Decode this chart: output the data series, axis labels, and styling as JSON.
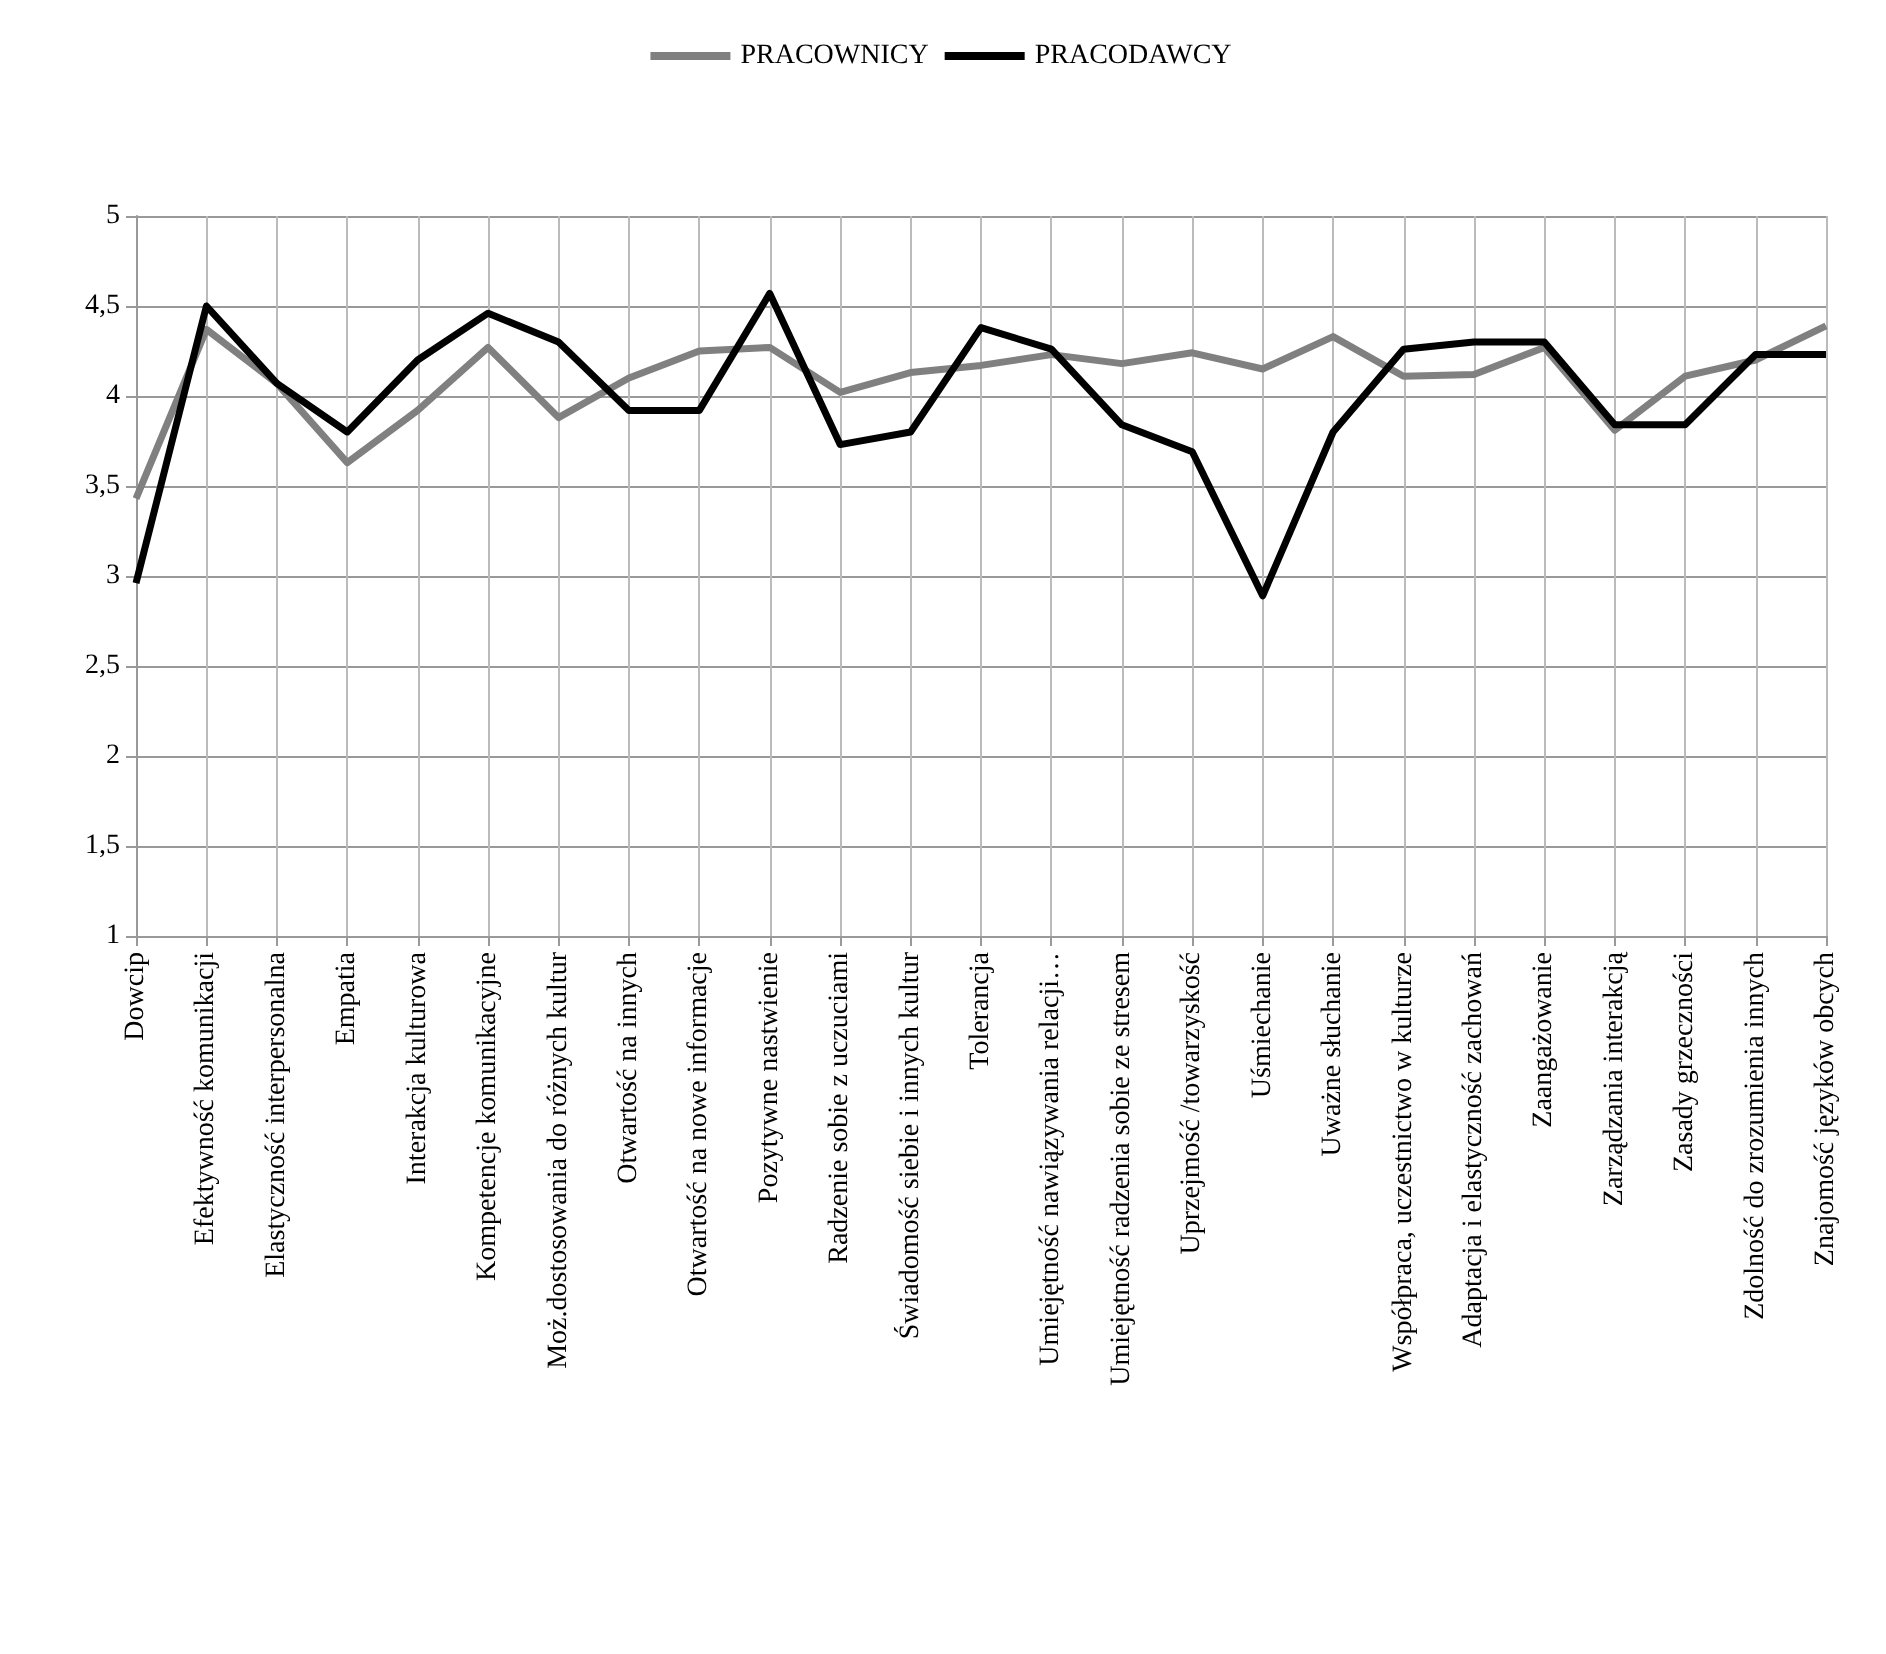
{
  "chart_data": {
    "type": "line",
    "categories": [
      "Dowcip",
      "Efektywność komunikacji",
      "Elastyczność interpersonalna",
      "Empatia",
      "Interakcja kulturowa",
      "Kompetencje komunikacyjne",
      "Moż.dostosowania do różnych kultur",
      "Otwartość na innych",
      "Otwartość na nowe informacje",
      "Pozytywne nastwienie",
      "Radzenie sobie z uczuciami",
      "Świadomość siebie i innych kultur",
      "Tolerancja",
      "Umiejętność nawiązywania relacji…",
      "Umiejętność radzenia sobie ze stresem",
      "Uprzejmość /towarzyskość",
      "Uśmiechanie",
      "Uważne słuchanie",
      "Współpraca, uczestnictwo w kulturze",
      "Adaptacja i elastyczność zachowań",
      "Zaangażowanie",
      "Zarządzania interakcją",
      "Zasady grzeczności",
      "Zdolność do zrozumienia innych",
      "Znajomość języków obcych"
    ],
    "series": [
      {
        "name": "PRACOWNICY",
        "color": "#808080",
        "values": [
          3.43,
          4.37,
          4.07,
          3.63,
          3.92,
          4.27,
          3.88,
          4.1,
          4.25,
          4.27,
          4.02,
          4.13,
          4.17,
          4.23,
          4.18,
          4.24,
          4.15,
          4.33,
          4.11,
          4.12,
          4.27,
          3.81,
          4.11,
          4.2,
          4.39
        ]
      },
      {
        "name": "PRACODAWCY",
        "color": "#000000",
        "values": [
          2.96,
          4.5,
          4.07,
          3.8,
          4.2,
          4.46,
          4.3,
          3.92,
          3.92,
          4.57,
          3.73,
          3.8,
          4.38,
          4.26,
          3.84,
          3.69,
          2.89,
          3.8,
          4.26,
          4.3,
          4.3,
          3.84,
          3.84,
          4.23,
          4.23
        ]
      }
    ],
    "ylim": [
      1,
      5
    ],
    "yticks": [
      1,
      {
        "value": 1.5,
        "label": "1,5"
      },
      2,
      {
        "value": 2.5,
        "label": "2,5"
      },
      3,
      {
        "value": 3.5,
        "label": "3,5"
      },
      4,
      {
        "value": 4.5,
        "label": "4,5"
      },
      5
    ],
    "grid": true,
    "legend": "top",
    "marker": "none",
    "line_style": "solid"
  }
}
